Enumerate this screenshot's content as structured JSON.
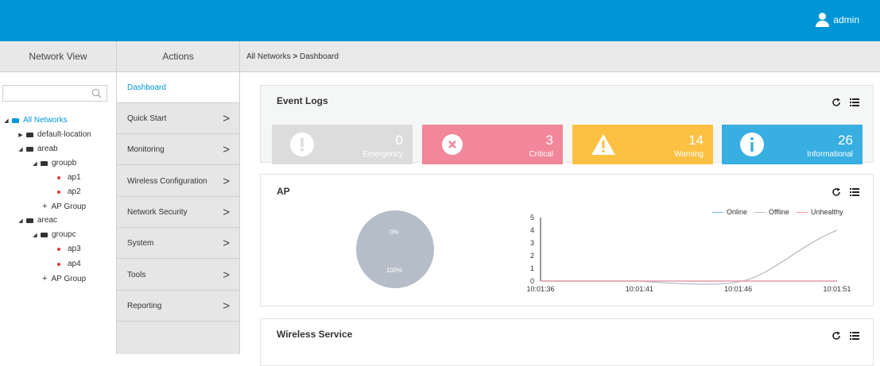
{
  "header": {
    "user": "admin"
  },
  "columns": {
    "network_view": "Network View",
    "actions": "Actions"
  },
  "breadcrumb": {
    "root": "All Networks",
    "separator": ">",
    "current": "Dashboard"
  },
  "tree": {
    "root": "All Networks",
    "default_location": "default-location",
    "areab": "areab",
    "groupb": "groupb",
    "ap1": "ap1",
    "ap2": "ap2",
    "ap_group_b": "AP Group",
    "areac": "areac",
    "groupc": "groupc",
    "ap3": "ap3",
    "ap4": "ap4",
    "ap_group_c": "AP Group"
  },
  "actions": [
    {
      "label": "Dashboard",
      "active": true
    },
    {
      "label": "Quick Start",
      "chevron": ">"
    },
    {
      "label": "Monitoring",
      "chevron": ">"
    },
    {
      "label": "Wireless Configuration",
      "chevron": ">"
    },
    {
      "label": "Network Security",
      "chevron": ">"
    },
    {
      "label": "System",
      "chevron": ">"
    },
    {
      "label": "Tools",
      "chevron": ">"
    },
    {
      "label": "Reporting",
      "chevron": ">"
    }
  ],
  "event_logs": {
    "title": "Event Logs",
    "tiles": [
      {
        "count": "0",
        "label": "Emergency",
        "color": "#dcdcdc",
        "icon": "exclamation-icon"
      },
      {
        "count": "3",
        "label": "Critical",
        "color": "#f2869a",
        "icon": "error-x-icon"
      },
      {
        "count": "14",
        "label": "Warning",
        "color": "#fcc143",
        "icon": "warning-triangle-icon"
      },
      {
        "count": "26",
        "label": "Informational",
        "color": "#39aee0",
        "icon": "info-icon"
      }
    ]
  },
  "ap": {
    "title": "AP",
    "pie": {
      "label_top": "0%",
      "label_bottom": "100%",
      "color": "#b5bdc8"
    },
    "legend": [
      {
        "name": "Online",
        "color": "#6fc0d9"
      },
      {
        "name": "Offline",
        "color": "#b9bec4"
      },
      {
        "name": "Unhealthy",
        "color": "#f0909c"
      }
    ]
  },
  "wireless_service": {
    "title": "Wireless Service"
  },
  "chart_data": [
    {
      "type": "pie",
      "values": [
        0,
        100
      ],
      "labels": [
        "0%",
        "100%"
      ]
    },
    {
      "type": "line",
      "x": [
        "10:01:36",
        "10:01:41",
        "10:01:46",
        "10:01:51"
      ],
      "ylim": [
        0,
        5
      ],
      "yticks": [
        "0",
        "1",
        "2",
        "3",
        "4",
        "5"
      ],
      "series": [
        {
          "name": "Online",
          "values": [
            0,
            0,
            0,
            0
          ],
          "color": "#6fc0d9"
        },
        {
          "name": "Offline",
          "values": [
            0,
            0,
            0,
            4
          ],
          "color": "#b9bec4"
        },
        {
          "name": "Unhealthy",
          "values": [
            0,
            0,
            0,
            0
          ],
          "color": "#f0909c"
        }
      ]
    }
  ]
}
